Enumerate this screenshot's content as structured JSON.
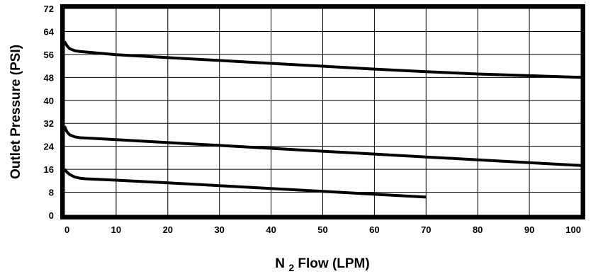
{
  "chart_data": {
    "type": "line",
    "title": "",
    "xlabel": "N",
    "xlabel_subscript": "2",
    "xlabel_suffix": " Flow (LPM)",
    "ylabel": "Outlet Pressure (PSI)",
    "xlim": [
      0,
      100
    ],
    "ylim": [
      0,
      72
    ],
    "x_ticks": [
      "0",
      "10",
      "20",
      "30",
      "40",
      "50",
      "60",
      "70",
      "80",
      "90",
      "100"
    ],
    "y_ticks": [
      "0",
      "8",
      "16",
      "24",
      "32",
      "40",
      "48",
      "56",
      "64",
      "72"
    ],
    "grid": true,
    "series": [
      {
        "x": [
          0,
          0.5,
          1,
          2,
          3,
          5,
          10,
          20,
          30,
          40,
          50,
          60,
          70,
          80,
          90,
          100
        ],
        "y": [
          60.5,
          59,
          58,
          57.3,
          57,
          56.7,
          55.9,
          54.9,
          53.9,
          52.9,
          51.9,
          50.9,
          50,
          49.2,
          48.6,
          48
        ]
      },
      {
        "x": [
          0,
          0.5,
          1,
          2,
          3,
          5,
          10,
          20,
          30,
          40,
          50,
          60,
          70,
          80,
          90,
          100
        ],
        "y": [
          31,
          29,
          28,
          27.3,
          27,
          26.8,
          26.3,
          25.3,
          24.3,
          23.3,
          22.3,
          21.3,
          20.3,
          19.3,
          18.3,
          17.3
        ]
      },
      {
        "x": [
          0,
          0.5,
          1,
          2,
          3,
          4,
          10,
          20,
          30,
          40,
          50,
          60,
          70
        ],
        "y": [
          16,
          15,
          14.2,
          13.3,
          12.9,
          12.7,
          12.2,
          11.3,
          10.3,
          9.3,
          8.3,
          7.3,
          6.3
        ]
      }
    ]
  }
}
